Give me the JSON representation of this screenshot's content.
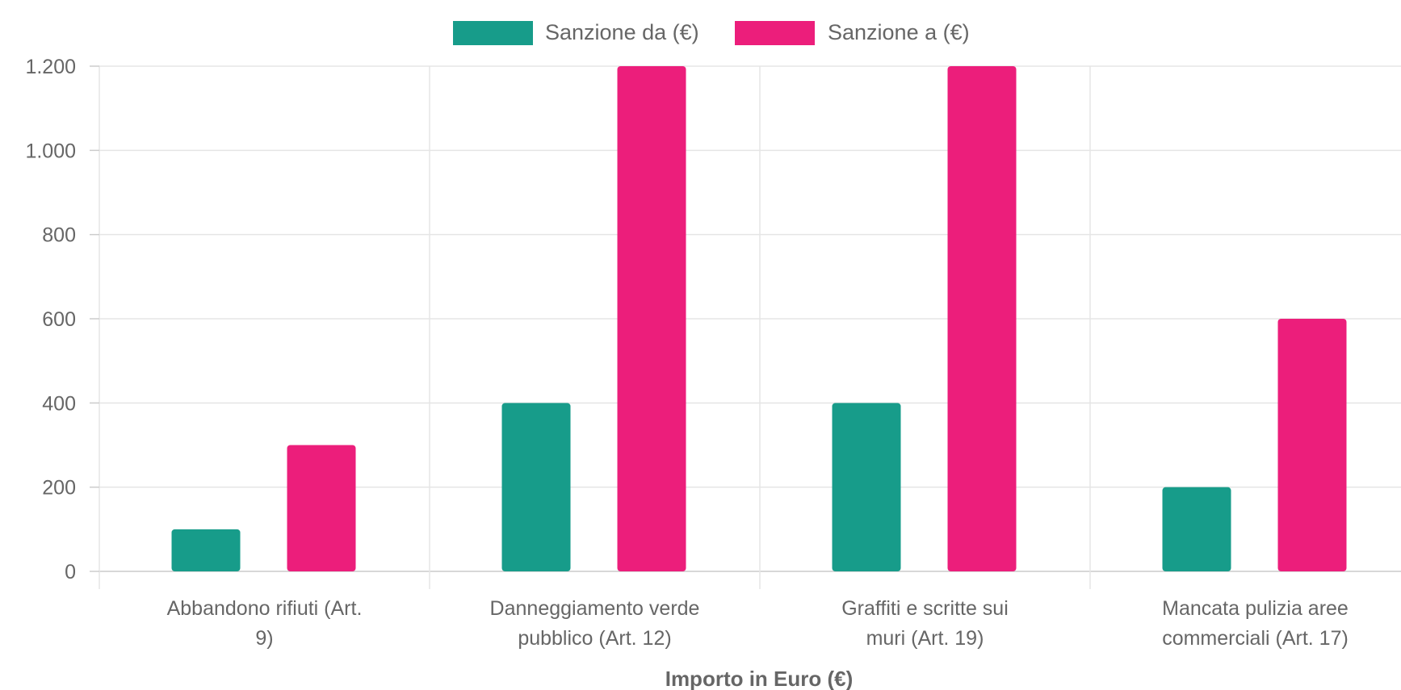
{
  "chart_data": {
    "type": "bar",
    "title": "",
    "xlabel": "Importo in Euro (€)",
    "ylabel": "",
    "categories": [
      [
        "Abbandono rifiuti (Art.",
        "9)"
      ],
      [
        "Danneggiamento verde",
        "pubblico (Art. 12)"
      ],
      [
        "Graffiti e scritte sui",
        "muri (Art. 19)"
      ],
      [
        "Mancata pulizia aree",
        "commerciali (Art. 17)"
      ]
    ],
    "series": [
      {
        "name": "Sanzione da (€)",
        "color": "#179c8a",
        "values": [
          100,
          400,
          400,
          200
        ]
      },
      {
        "name": "Sanzione a (€)",
        "color": "#ec1e7b",
        "values": [
          300,
          1200,
          1200,
          600
        ]
      }
    ],
    "ylim": [
      0,
      1200
    ],
    "yticks": [
      0,
      200,
      400,
      600,
      800,
      1000,
      1200
    ],
    "ytick_labels": [
      "0",
      "200",
      "400",
      "600",
      "800",
      "1.000",
      "1.200"
    ],
    "grid": true,
    "legend_position": "top"
  }
}
